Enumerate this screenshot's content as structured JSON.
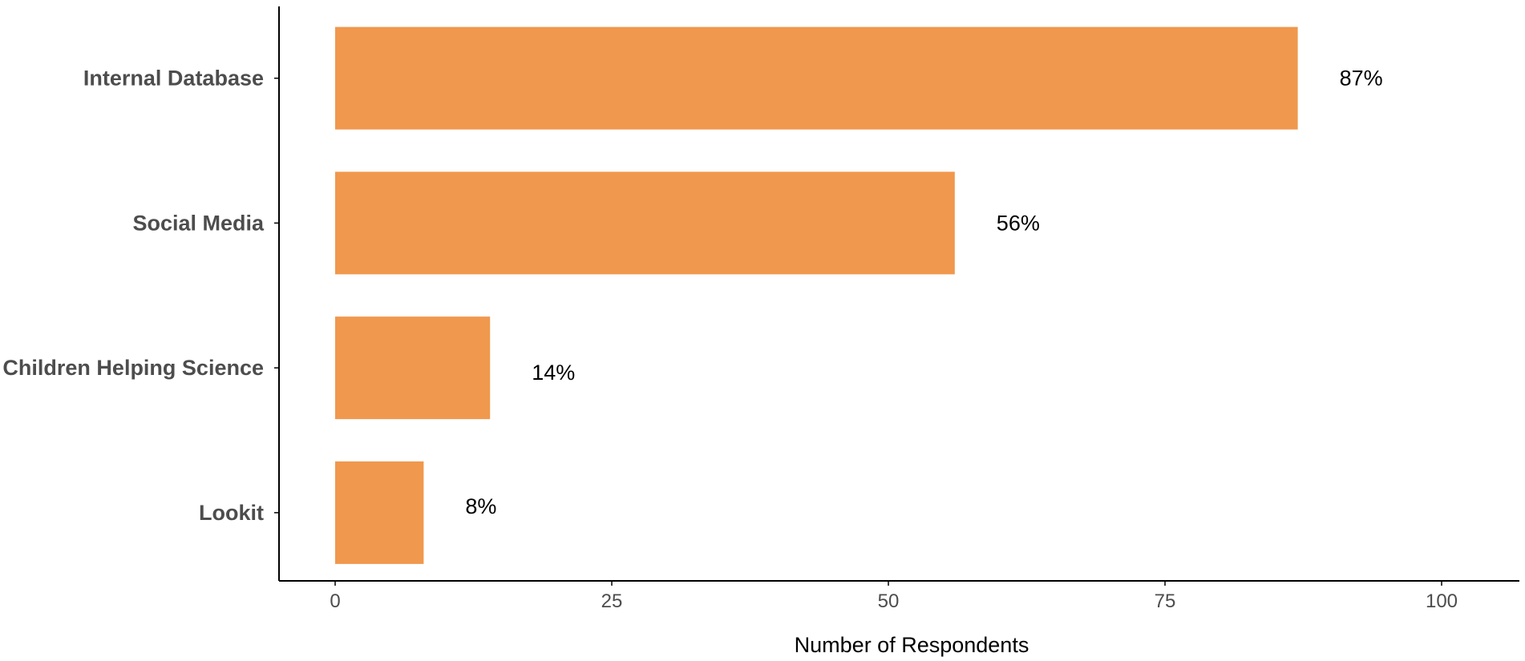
{
  "colors": {
    "bar": "#F0984D",
    "axis": "#000000",
    "tick_text": "#4d4d4d",
    "category_text": "#4d4d4d",
    "data_label_text": "#000000"
  },
  "chart_data": {
    "type": "bar",
    "orientation": "horizontal",
    "categories": [
      "Internal Database",
      "Social Media",
      "Children Helping Science",
      "Lookit"
    ],
    "values": [
      87,
      56,
      14,
      8
    ],
    "data_labels": [
      "87%",
      "56%",
      "14%",
      "8%"
    ],
    "xlabel": "Number of Respondents",
    "ylabel": "",
    "xlim": [
      -5,
      107
    ],
    "x_ticks": [
      0,
      25,
      50,
      75,
      100
    ],
    "x_tick_labels": [
      "0",
      "25",
      "50",
      "75",
      "100"
    ],
    "grid": false,
    "legend": "none"
  }
}
